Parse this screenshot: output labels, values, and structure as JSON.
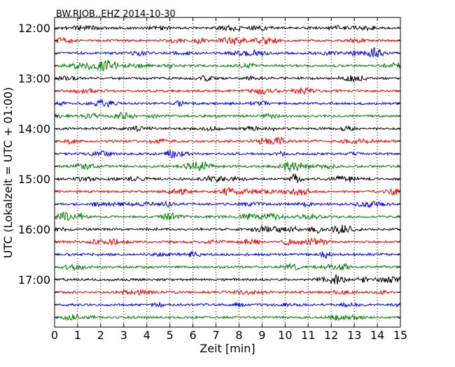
{
  "chart_data": {
    "type": "line",
    "title": "BW.RJOB..EHZ 2014-10-30",
    "xlabel": "Zeit  [min]",
    "ylabel": "UTC (Lokalzeit = UTC + 01:00)",
    "xlim": [
      0,
      15
    ],
    "x_ticks": [
      "0",
      "1",
      "2",
      "3",
      "4",
      "5",
      "6",
      "7",
      "8",
      "9",
      "10",
      "11",
      "12",
      "13",
      "14",
      "15"
    ],
    "y_tick_labels": [
      "12:00",
      "13:00",
      "14:00",
      "15:00",
      "16:00",
      "17:00"
    ],
    "grid": "vertical dotted",
    "color_cycle": [
      "#000000",
      "#ff0000",
      "#0000ff",
      "#008000"
    ],
    "traces": [
      {
        "start": "12:00",
        "color": "#000000"
      },
      {
        "start": "12:15",
        "color": "#ff0000"
      },
      {
        "start": "12:30",
        "color": "#0000ff"
      },
      {
        "start": "12:45",
        "color": "#008000"
      },
      {
        "start": "13:00",
        "color": "#000000"
      },
      {
        "start": "13:15",
        "color": "#ff0000"
      },
      {
        "start": "13:30",
        "color": "#0000ff"
      },
      {
        "start": "13:45",
        "color": "#008000"
      },
      {
        "start": "14:00",
        "color": "#000000"
      },
      {
        "start": "14:15",
        "color": "#ff0000"
      },
      {
        "start": "14:30",
        "color": "#0000ff"
      },
      {
        "start": "14:45",
        "color": "#008000"
      },
      {
        "start": "15:00",
        "color": "#000000"
      },
      {
        "start": "15:15",
        "color": "#ff0000"
      },
      {
        "start": "15:30",
        "color": "#0000ff"
      },
      {
        "start": "15:45",
        "color": "#008000"
      },
      {
        "start": "16:00",
        "color": "#000000"
      },
      {
        "start": "16:15",
        "color": "#ff0000"
      },
      {
        "start": "16:30",
        "color": "#0000ff"
      },
      {
        "start": "16:45",
        "color": "#008000"
      },
      {
        "start": "17:00",
        "color": "#000000"
      },
      {
        "start": "17:15",
        "color": "#ff0000"
      },
      {
        "start": "17:30",
        "color": "#0000ff"
      },
      {
        "start": "17:45",
        "color": "#008000"
      }
    ]
  }
}
